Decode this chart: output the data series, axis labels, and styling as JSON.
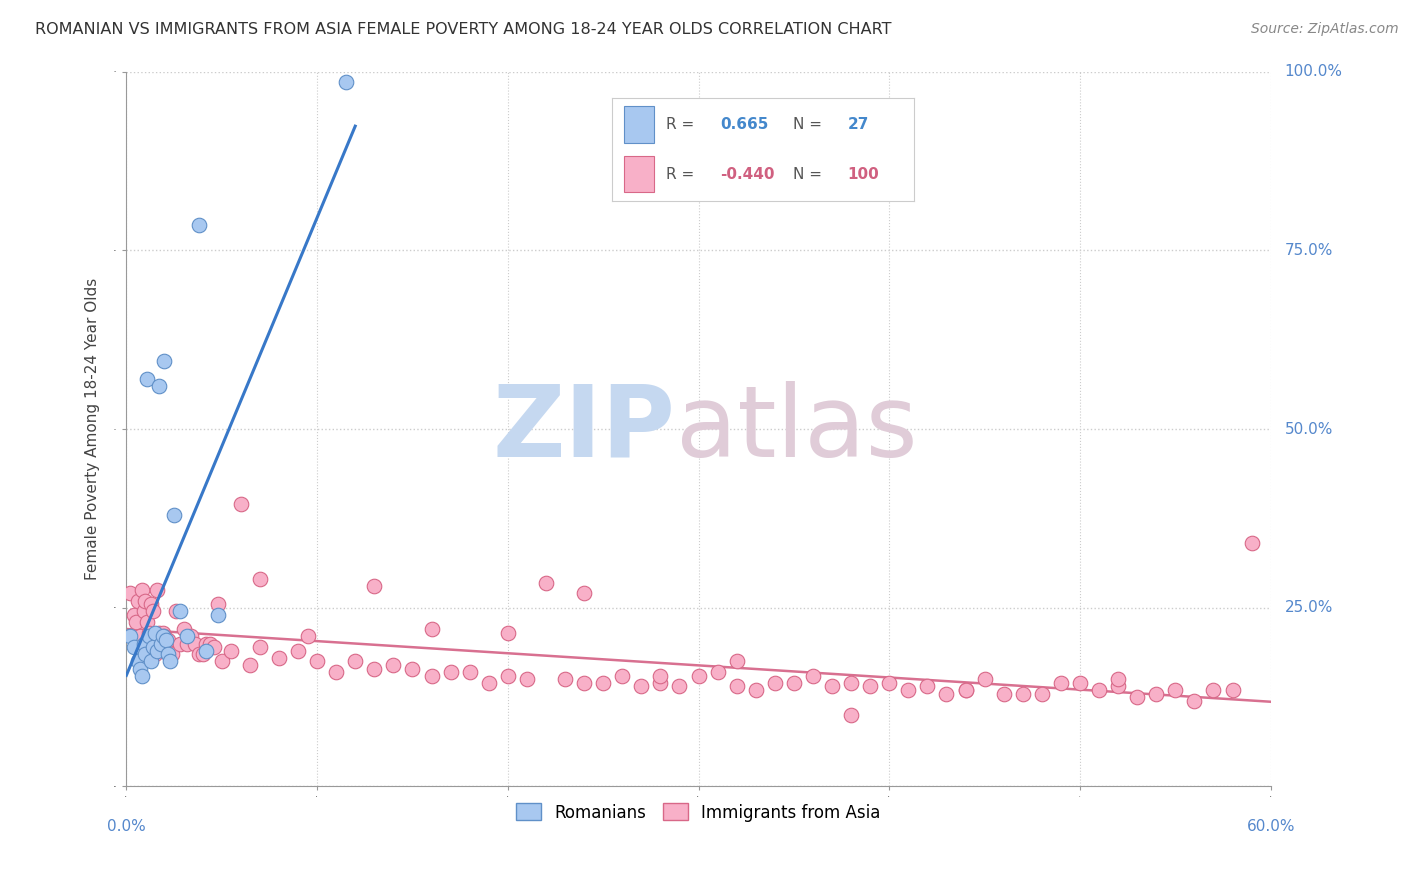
{
  "title": "ROMANIAN VS IMMIGRANTS FROM ASIA FEMALE POVERTY AMONG 18-24 YEAR OLDS CORRELATION CHART",
  "source": "Source: ZipAtlas.com",
  "ylabel": "Female Poverty Among 18-24 Year Olds",
  "xlim": [
    0.0,
    0.6
  ],
  "ylim": [
    0.0,
    1.0
  ],
  "xticks": [
    0.0,
    0.1,
    0.2,
    0.3,
    0.4,
    0.5,
    0.6
  ],
  "xticklabels": [
    "0.0%",
    "",
    "",
    "",
    "",
    "",
    "60.0%"
  ],
  "yticks": [
    0.0,
    0.25,
    0.5,
    0.75,
    1.0
  ],
  "yticklabels": [
    "",
    "25.0%",
    "50.0%",
    "75.0%",
    "100.0%"
  ],
  "romanian_R": 0.665,
  "romanian_N": 27,
  "asian_R": -0.44,
  "asian_N": 100,
  "romanian_color": "#a8c8f0",
  "romanian_edge": "#6090c8",
  "asian_color": "#f8b0c8",
  "asian_edge": "#d86888",
  "line_blue": "#3878c8",
  "line_pink": "#d87090",
  "background": "#ffffff",
  "grid_color": "#cccccc",
  "romanian_x": [
    0.002,
    0.004,
    0.006,
    0.007,
    0.008,
    0.009,
    0.01,
    0.011,
    0.012,
    0.013,
    0.014,
    0.015,
    0.016,
    0.017,
    0.018,
    0.019,
    0.02,
    0.021,
    0.022,
    0.023,
    0.025,
    0.028,
    0.032,
    0.038,
    0.042,
    0.048,
    0.115
  ],
  "romanian_y": [
    0.21,
    0.195,
    0.175,
    0.165,
    0.155,
    0.2,
    0.185,
    0.57,
    0.21,
    0.175,
    0.195,
    0.215,
    0.19,
    0.56,
    0.2,
    0.21,
    0.595,
    0.205,
    0.185,
    0.175,
    0.38,
    0.245,
    0.21,
    0.785,
    0.19,
    0.24,
    0.985
  ],
  "asian_x": [
    0.002,
    0.004,
    0.005,
    0.006,
    0.007,
    0.008,
    0.009,
    0.01,
    0.011,
    0.012,
    0.013,
    0.014,
    0.015,
    0.016,
    0.017,
    0.018,
    0.019,
    0.02,
    0.022,
    0.024,
    0.026,
    0.028,
    0.03,
    0.032,
    0.034,
    0.036,
    0.038,
    0.04,
    0.042,
    0.044,
    0.046,
    0.05,
    0.055,
    0.06,
    0.065,
    0.07,
    0.08,
    0.09,
    0.1,
    0.11,
    0.12,
    0.13,
    0.14,
    0.15,
    0.16,
    0.17,
    0.18,
    0.19,
    0.2,
    0.21,
    0.22,
    0.23,
    0.24,
    0.25,
    0.26,
    0.27,
    0.28,
    0.29,
    0.3,
    0.31,
    0.32,
    0.33,
    0.34,
    0.35,
    0.36,
    0.37,
    0.38,
    0.39,
    0.4,
    0.41,
    0.42,
    0.43,
    0.44,
    0.45,
    0.46,
    0.47,
    0.48,
    0.49,
    0.5,
    0.51,
    0.52,
    0.53,
    0.54,
    0.55,
    0.56,
    0.57,
    0.58,
    0.59,
    0.048,
    0.07,
    0.095,
    0.13,
    0.16,
    0.2,
    0.24,
    0.28,
    0.32,
    0.38,
    0.44,
    0.52
  ],
  "asian_y": [
    0.27,
    0.24,
    0.23,
    0.26,
    0.21,
    0.275,
    0.245,
    0.26,
    0.23,
    0.215,
    0.255,
    0.245,
    0.185,
    0.275,
    0.215,
    0.2,
    0.215,
    0.21,
    0.205,
    0.185,
    0.245,
    0.2,
    0.22,
    0.2,
    0.21,
    0.2,
    0.185,
    0.185,
    0.2,
    0.2,
    0.195,
    0.175,
    0.19,
    0.395,
    0.17,
    0.195,
    0.18,
    0.19,
    0.175,
    0.16,
    0.175,
    0.165,
    0.17,
    0.165,
    0.155,
    0.16,
    0.16,
    0.145,
    0.155,
    0.15,
    0.285,
    0.15,
    0.145,
    0.145,
    0.155,
    0.14,
    0.145,
    0.14,
    0.155,
    0.16,
    0.14,
    0.135,
    0.145,
    0.145,
    0.155,
    0.14,
    0.145,
    0.14,
    0.145,
    0.135,
    0.14,
    0.13,
    0.135,
    0.15,
    0.13,
    0.13,
    0.13,
    0.145,
    0.145,
    0.135,
    0.14,
    0.125,
    0.13,
    0.135,
    0.12,
    0.135,
    0.135,
    0.34,
    0.255,
    0.29,
    0.21,
    0.28,
    0.22,
    0.215,
    0.27,
    0.155,
    0.175,
    0.1,
    0.135,
    0.15
  ]
}
